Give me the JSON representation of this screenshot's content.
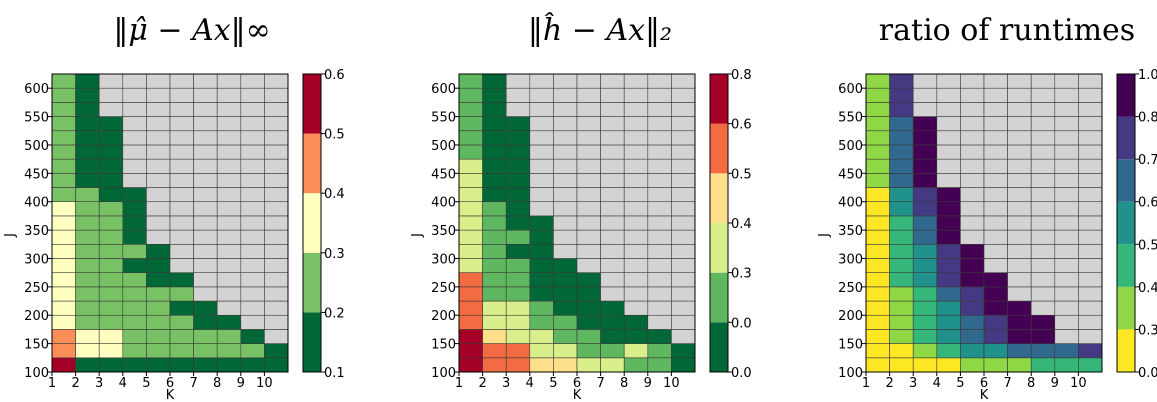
{
  "chart_data": [
    {
      "type": "heatmap",
      "title": "‖μ̂ − Ax‖∞",
      "xlabel": "K",
      "ylabel": "J",
      "x_ticks": [
        "1",
        "2",
        "3",
        "4",
        "5",
        "6",
        "7",
        "8",
        "9",
        "10"
      ],
      "y_ticks": [
        "100",
        "150",
        "200",
        "250",
        "300",
        "350",
        "400",
        "450",
        "500",
        "550",
        "600"
      ],
      "x_cols": 10,
      "y_rows": 21,
      "missing_color": "#d3d3d3",
      "colorbar": {
        "ticks": [
          "0.1",
          "0.2",
          "0.3",
          "0.4",
          "0.5",
          "0.6"
        ],
        "levels": [
          "#006837",
          "#78c164",
          "#ffffbf",
          "#fb8d59",
          "#a50026"
        ]
      },
      "cells": [
        [
          4,
          0,
          0,
          0,
          0,
          0,
          0,
          0,
          0,
          0
        ],
        [
          3,
          2,
          2,
          1,
          1,
          1,
          1,
          1,
          1,
          0
        ],
        [
          3,
          2,
          2,
          1,
          1,
          1,
          1,
          1,
          0,
          null
        ],
        [
          2,
          1,
          1,
          1,
          1,
          1,
          0,
          0,
          null,
          null
        ],
        [
          2,
          1,
          1,
          1,
          1,
          0,
          0,
          null,
          null,
          null
        ],
        [
          2,
          1,
          1,
          1,
          1,
          1,
          null,
          null,
          null,
          null
        ],
        [
          2,
          1,
          1,
          1,
          0,
          0,
          null,
          null,
          null,
          null
        ],
        [
          2,
          1,
          1,
          0,
          0,
          null,
          null,
          null,
          null,
          null
        ],
        [
          2,
          1,
          1,
          1,
          0,
          null,
          null,
          null,
          null,
          null
        ],
        [
          2,
          1,
          1,
          0,
          null,
          null,
          null,
          null,
          null,
          null
        ],
        [
          2,
          1,
          1,
          0,
          null,
          null,
          null,
          null,
          null,
          null
        ],
        [
          2,
          1,
          1,
          0,
          null,
          null,
          null,
          null,
          null,
          null
        ],
        [
          1,
          1,
          0,
          0,
          null,
          null,
          null,
          null,
          null,
          null
        ],
        [
          1,
          0,
          0,
          null,
          null,
          null,
          null,
          null,
          null,
          null
        ],
        [
          1,
          0,
          0,
          null,
          null,
          null,
          null,
          null,
          null,
          null
        ],
        [
          1,
          0,
          0,
          null,
          null,
          null,
          null,
          null,
          null,
          null
        ],
        [
          1,
          0,
          0,
          null,
          null,
          null,
          null,
          null,
          null,
          null
        ],
        [
          1,
          0,
          0,
          null,
          null,
          null,
          null,
          null,
          null,
          null
        ],
        [
          1,
          0,
          null,
          null,
          null,
          null,
          null,
          null,
          null,
          null
        ],
        [
          1,
          0,
          null,
          null,
          null,
          null,
          null,
          null,
          null,
          null
        ],
        [
          1,
          0,
          null,
          null,
          null,
          null,
          null,
          null,
          null,
          null
        ]
      ]
    },
    {
      "type": "heatmap",
      "title": "‖ĥ − Ax‖₂",
      "xlabel": "K",
      "ylabel": "J",
      "x_ticks": [
        "1",
        "2",
        "3",
        "4",
        "5",
        "6",
        "7",
        "8",
        "9",
        "10"
      ],
      "y_ticks": [
        "100",
        "150",
        "200",
        "250",
        "300",
        "350",
        "400",
        "450",
        "500",
        "550",
        "600"
      ],
      "x_cols": 10,
      "y_rows": 21,
      "missing_color": "#d3d3d3",
      "colorbar": {
        "ticks": [
          "0.0",
          "0.0",
          "0.3",
          "0.4",
          "0.5",
          "0.6",
          "0.8"
        ],
        "levels": [
          "#006837",
          "#5fb760",
          "#d9ef8b",
          "#fee08b",
          "#f26b42",
          "#a50026"
        ]
      },
      "cells": [
        [
          5,
          4,
          4,
          3,
          3,
          2,
          2,
          1,
          1,
          0
        ],
        [
          5,
          4,
          4,
          2,
          2,
          1,
          1,
          2,
          1,
          0
        ],
        [
          5,
          3,
          2,
          2,
          1,
          1,
          0,
          0,
          0,
          null
        ],
        [
          4,
          2,
          2,
          1,
          1,
          0,
          0,
          0,
          null,
          null
        ],
        [
          4,
          2,
          2,
          1,
          0,
          0,
          0,
          null,
          null,
          null
        ],
        [
          4,
          1,
          1,
          0,
          0,
          0,
          null,
          null,
          null,
          null
        ],
        [
          4,
          1,
          1,
          0,
          0,
          0,
          null,
          null,
          null,
          null
        ],
        [
          2,
          1,
          1,
          0,
          0,
          null,
          null,
          null,
          null,
          null
        ],
        [
          2,
          1,
          0,
          0,
          null,
          null,
          null,
          null,
          null,
          null
        ],
        [
          2,
          1,
          1,
          0,
          null,
          null,
          null,
          null,
          null,
          null
        ],
        [
          2,
          1,
          0,
          0,
          null,
          null,
          null,
          null,
          null,
          null
        ],
        [
          2,
          1,
          0,
          null,
          null,
          null,
          null,
          null,
          null,
          null
        ],
        [
          2,
          0,
          0,
          null,
          null,
          null,
          null,
          null,
          null,
          null
        ],
        [
          2,
          0,
          0,
          null,
          null,
          null,
          null,
          null,
          null,
          null
        ],
        [
          2,
          0,
          0,
          null,
          null,
          null,
          null,
          null,
          null,
          null
        ],
        [
          1,
          0,
          0,
          null,
          null,
          null,
          null,
          null,
          null,
          null
        ],
        [
          1,
          0,
          0,
          null,
          null,
          null,
          null,
          null,
          null,
          null
        ],
        [
          1,
          0,
          0,
          null,
          null,
          null,
          null,
          null,
          null,
          null
        ],
        [
          1,
          0,
          null,
          null,
          null,
          null,
          null,
          null,
          null,
          null
        ],
        [
          1,
          0,
          null,
          null,
          null,
          null,
          null,
          null,
          null,
          null
        ],
        [
          1,
          0,
          null,
          null,
          null,
          null,
          null,
          null,
          null,
          null
        ]
      ]
    },
    {
      "type": "heatmap",
      "title": "ratio of runtimes",
      "xlabel": "K",
      "ylabel": "J",
      "x_ticks": [
        "1",
        "2",
        "3",
        "4",
        "5",
        "6",
        "7",
        "8",
        "9",
        "10"
      ],
      "y_ticks": [
        "100",
        "150",
        "200",
        "250",
        "300",
        "350",
        "400",
        "450",
        "500",
        "550",
        "600"
      ],
      "x_cols": 10,
      "y_rows": 21,
      "missing_color": "#d3d3d3",
      "colorbar": {
        "ticks": [
          "0.0",
          "0.3",
          "0.4",
          "0.5",
          "0.6",
          "0.7",
          "0.8",
          "1.0"
        ],
        "levels": [
          "#fde725",
          "#8fd744",
          "#35b779",
          "#21918c",
          "#31688e",
          "#443983",
          "#440154"
        ]
      },
      "cells": [
        [
          0,
          0,
          0,
          0,
          1,
          1,
          1,
          2,
          2,
          2
        ],
        [
          0,
          0,
          1,
          2,
          3,
          3,
          4,
          4,
          4,
          5
        ],
        [
          0,
          1,
          2,
          3,
          4,
          5,
          6,
          6,
          null,
          null
        ],
        [
          0,
          1,
          2,
          3,
          4,
          5,
          6,
          6,
          null,
          null
        ],
        [
          0,
          1,
          2,
          3,
          5,
          6,
          6,
          null,
          null,
          null
        ],
        [
          0,
          1,
          2,
          4,
          5,
          6,
          null,
          null,
          null,
          null
        ],
        [
          0,
          2,
          3,
          5,
          6,
          6,
          null,
          null,
          null,
          null
        ],
        [
          0,
          2,
          3,
          5,
          6,
          null,
          null,
          null,
          null,
          null
        ],
        [
          0,
          2,
          3,
          5,
          6,
          null,
          null,
          null,
          null,
          null
        ],
        [
          0,
          2,
          4,
          6,
          null,
          null,
          null,
          null,
          null,
          null
        ],
        [
          0,
          2,
          4,
          6,
          null,
          null,
          null,
          null,
          null,
          null
        ],
        [
          0,
          3,
          5,
          6,
          null,
          null,
          null,
          null,
          null,
          null
        ],
        [
          0,
          3,
          5,
          6,
          null,
          null,
          null,
          null,
          null,
          null
        ],
        [
          1,
          4,
          6,
          null,
          null,
          null,
          null,
          null,
          null,
          null
        ],
        [
          1,
          4,
          6,
          null,
          null,
          null,
          null,
          null,
          null,
          null
        ],
        [
          1,
          4,
          6,
          null,
          null,
          null,
          null,
          null,
          null,
          null
        ],
        [
          1,
          4,
          6,
          null,
          null,
          null,
          null,
          null,
          null,
          null
        ],
        [
          1,
          4,
          6,
          null,
          null,
          null,
          null,
          null,
          null,
          null
        ],
        [
          1,
          5,
          null,
          null,
          null,
          null,
          null,
          null,
          null,
          null
        ],
        [
          1,
          5,
          null,
          null,
          null,
          null,
          null,
          null,
          null,
          null
        ],
        [
          1,
          5,
          null,
          null,
          null,
          null,
          null,
          null,
          null,
          null
        ]
      ]
    }
  ]
}
